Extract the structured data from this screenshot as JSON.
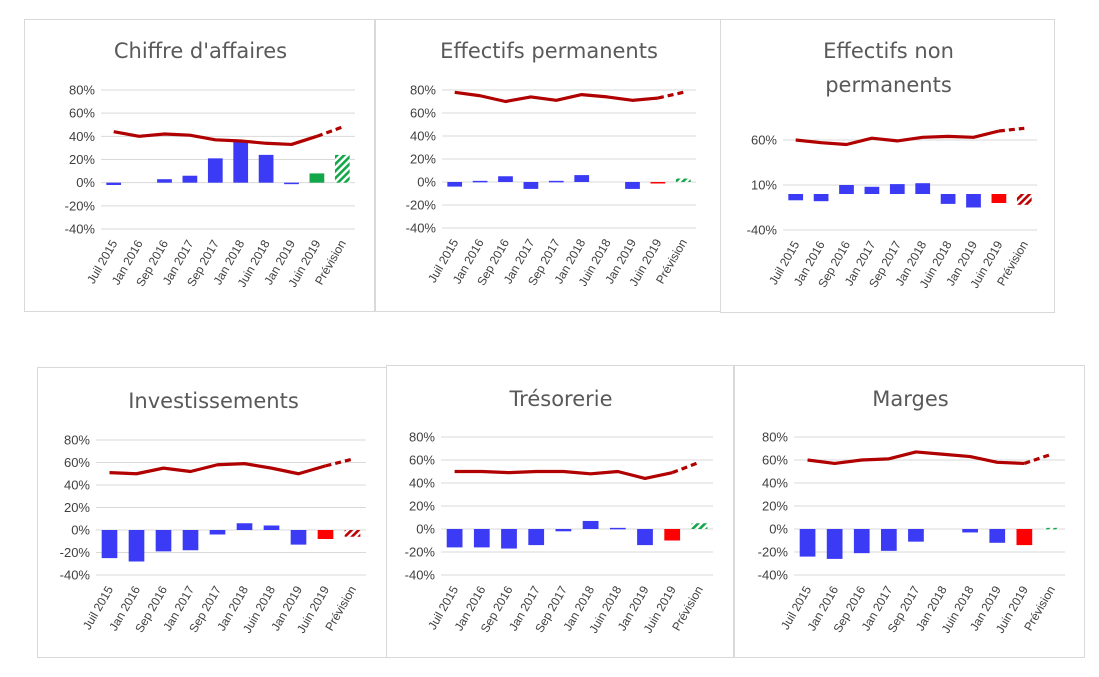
{
  "colors": {
    "bar": "#3b3bf5",
    "line": "#b00000",
    "forecast_up": "#13a64a",
    "forecast_down": "#ff0000",
    "hatch_down": "#c00000",
    "grid": "#d9d9d9",
    "text": "#404040",
    "title": "#595959"
  },
  "chart_data": [
    {
      "type": "bar",
      "title": [
        "Chiffre d'affaires"
      ],
      "categories": [
        "Juil 2015",
        "Jan 2016",
        "Sep 2016",
        "Jan 2017",
        "Sep 2017",
        "Jan 2018",
        "Juin 2018",
        "Jan 2019",
        "Juin 2019",
        "Prévision"
      ],
      "ylim": [
        -40,
        80
      ],
      "yticks": [
        {
          "v": 80,
          "label": "80%"
        },
        {
          "v": 60,
          "label": "60%"
        },
        {
          "v": 40,
          "label": "40%"
        },
        {
          "v": 20,
          "label": "20%"
        },
        {
          "v": 0,
          "label": "0%"
        },
        {
          "v": -20,
          "label": "-20%"
        },
        {
          "v": -40,
          "label": "-40%"
        }
      ],
      "bars": [
        -2,
        0,
        3,
        6,
        21,
        36,
        24,
        -1,
        8,
        24
      ],
      "line": [
        44,
        40,
        42,
        41,
        37,
        36,
        34,
        33,
        40,
        48
      ],
      "grid": true,
      "legend": "none"
    },
    {
      "type": "bar",
      "title": [
        "Effectifs permanents"
      ],
      "categories": [
        "Juil 2015",
        "Jan 2016",
        "Sep 2016",
        "Jan 2017",
        "Sep 2017",
        "Jan 2018",
        "Juin 2018",
        "Jan 2019",
        "Juin 2019",
        "Prévision"
      ],
      "ylim": [
        -40,
        80
      ],
      "yticks": [
        {
          "v": 80,
          "label": "80%"
        },
        {
          "v": 60,
          "label": "60%"
        },
        {
          "v": 40,
          "label": "40%"
        },
        {
          "v": 20,
          "label": "20%"
        },
        {
          "v": 0,
          "label": "0%"
        },
        {
          "v": -20,
          "label": "-20%"
        },
        {
          "v": -40,
          "label": "-40%"
        }
      ],
      "bars": [
        -4,
        1,
        5,
        -6,
        1,
        6,
        0,
        -6,
        -1,
        3
      ],
      "line": [
        78,
        75,
        70,
        74,
        71,
        76,
        74,
        71,
        73,
        78
      ],
      "grid": true,
      "legend": "none"
    },
    {
      "type": "bar",
      "title": [
        "Effectifs non",
        "permanents"
      ],
      "categories": [
        "Juil 2015",
        "Jan 2016",
        "Sep 2016",
        "Jan 2017",
        "Sep 2017",
        "Jan 2018",
        "Juin 2018",
        "Jan 2019",
        "Juin 2019",
        "Prévision"
      ],
      "ylim": [
        -40,
        60
      ],
      "yticks": [
        {
          "v": 60,
          "label": "60%"
        },
        {
          "v": 10,
          "label": "10%"
        },
        {
          "v": -40,
          "label": "-40%"
        }
      ],
      "bars": [
        -7,
        -8,
        10,
        8,
        11,
        12,
        -11,
        -15,
        -10,
        -12
      ],
      "line": [
        60,
        57,
        55,
        62,
        59,
        63,
        64,
        63,
        70,
        73
      ],
      "grid": true,
      "legend": "none"
    },
    {
      "type": "bar",
      "title": [
        "Investissements"
      ],
      "categories": [
        "Juil 2015",
        "Jan 2016",
        "Sep 2016",
        "Jan 2017",
        "Sep 2017",
        "Jan 2018",
        "Juin 2018",
        "Jan 2019",
        "Juin 2019",
        "Prévision"
      ],
      "ylim": [
        -40,
        80
      ],
      "yticks": [
        {
          "v": 80,
          "label": "80%"
        },
        {
          "v": 60,
          "label": "60%"
        },
        {
          "v": 40,
          "label": "40%"
        },
        {
          "v": 20,
          "label": "20%"
        },
        {
          "v": 0,
          "label": "0%"
        },
        {
          "v": -20,
          "label": "-20%"
        },
        {
          "v": -40,
          "label": "-40%"
        }
      ],
      "bars": [
        -25,
        -28,
        -19,
        -18,
        -4,
        6,
        4,
        -13,
        -8,
        -6
      ],
      "line": [
        51,
        50,
        55,
        52,
        58,
        59,
        55,
        50,
        57,
        63
      ],
      "grid": true,
      "legend": "none"
    },
    {
      "type": "bar",
      "title": [
        "Trésorerie"
      ],
      "categories": [
        "Juil 2015",
        "Jan 2016",
        "Sep 2016",
        "Jan 2017",
        "Sep 2017",
        "Jan 2018",
        "Juin 2018",
        "Jan 2019",
        "Juin 2019",
        "Prévision"
      ],
      "ylim": [
        -40,
        80
      ],
      "yticks": [
        {
          "v": 80,
          "label": "80%"
        },
        {
          "v": 60,
          "label": "60%"
        },
        {
          "v": 40,
          "label": "40%"
        },
        {
          "v": 20,
          "label": "20%"
        },
        {
          "v": 0,
          "label": "0%"
        },
        {
          "v": -20,
          "label": "-20%"
        },
        {
          "v": -40,
          "label": "-40%"
        }
      ],
      "bars": [
        -16,
        -16,
        -17,
        -14,
        -2,
        7,
        1,
        -14,
        -10,
        5
      ],
      "line": [
        50,
        50,
        49,
        50,
        50,
        48,
        50,
        44,
        49,
        58
      ],
      "grid": true,
      "legend": "none"
    },
    {
      "type": "bar",
      "title": [
        "Marges"
      ],
      "categories": [
        "Juil 2015",
        "Jan 2016",
        "Sep 2016",
        "Jan 2017",
        "Sep 2017",
        "Jan 2018",
        "Juin 2018",
        "Jan 2019",
        "Juin 2019",
        "Prévision"
      ],
      "ylim": [
        -40,
        80
      ],
      "yticks": [
        {
          "v": 80,
          "label": "80%"
        },
        {
          "v": 60,
          "label": "60%"
        },
        {
          "v": 40,
          "label": "40%"
        },
        {
          "v": 20,
          "label": "20%"
        },
        {
          "v": 0,
          "label": "0%"
        },
        {
          "v": -20,
          "label": "-20%"
        },
        {
          "v": -40,
          "label": "-40%"
        }
      ],
      "bars": [
        -24,
        -26,
        -21,
        -19,
        -11,
        0,
        -3,
        -12,
        -14,
        1
      ],
      "line": [
        60,
        57,
        60,
        61,
        67,
        65,
        63,
        58,
        57,
        65
      ],
      "grid": true,
      "legend": "none"
    }
  ]
}
